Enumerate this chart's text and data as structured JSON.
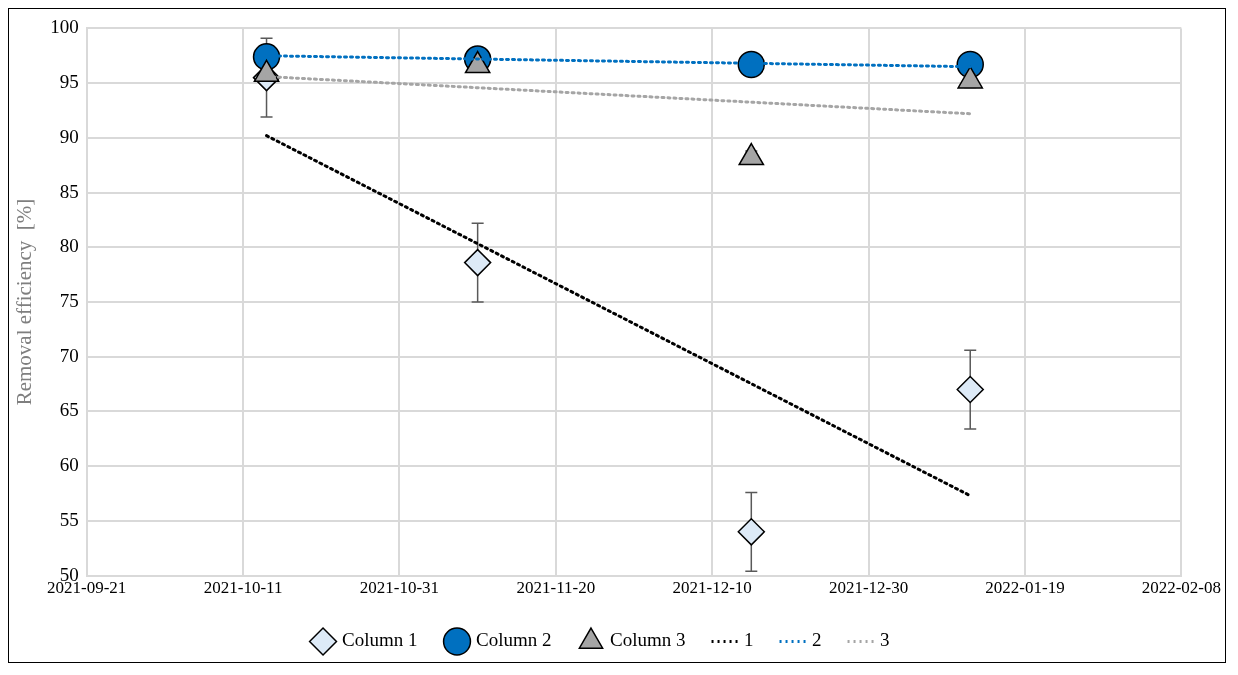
{
  "chart_data": {
    "type": "scatter",
    "ylabel": "Removal efficiency  [%]",
    "x": [
      "2021-10-14",
      "2021-11-10",
      "2021-12-15",
      "2022-01-12"
    ],
    "series": [
      {
        "name": "Column 1",
        "marker": "diamond",
        "color": "#ddeaf7",
        "values": [
          95.5,
          78.6,
          54.0,
          67.0
        ],
        "errors": [
          3.6,
          3.6,
          3.6,
          3.6
        ]
      },
      {
        "name": "Column 2",
        "marker": "circle",
        "color": "#0070c0",
        "values": [
          97.4,
          97.2,
          96.7,
          96.7
        ]
      },
      {
        "name": "Column 3",
        "marker": "triangle",
        "color": "#a5a5a5",
        "values": [
          95.8,
          96.6,
          88.2,
          95.2
        ],
        "errors": [
          null,
          null,
          0.6,
          0.6
        ]
      },
      {
        "name": "1",
        "type": "line",
        "line_style": "dotted",
        "color": "#000000",
        "x": [
          "2021-10-14",
          "2022-01-12"
        ],
        "values": [
          90.2,
          57.3
        ]
      },
      {
        "name": "2",
        "type": "line",
        "line_style": "dotted",
        "color": "#0070c0",
        "x": [
          "2021-10-14",
          "2022-01-12"
        ],
        "values": [
          97.5,
          96.5
        ]
      },
      {
        "name": "3",
        "type": "line",
        "line_style": "dotted",
        "color": "#a5a5a5",
        "x": [
          "2021-10-14",
          "2022-01-12"
        ],
        "values": [
          95.6,
          92.2
        ]
      }
    ],
    "xlim": [
      "2021-09-21",
      "2022-02-08"
    ],
    "xticks": [
      "2021-09-21",
      "2021-10-11",
      "2021-10-31",
      "2021-11-20",
      "2021-12-10",
      "2021-12-30",
      "2022-01-19",
      "2022-02-08"
    ],
    "ylim": [
      50,
      100
    ],
    "yticks": [
      50,
      55,
      60,
      65,
      70,
      75,
      80,
      85,
      90,
      95,
      100
    ],
    "grid": true,
    "legend": "bottom"
  }
}
